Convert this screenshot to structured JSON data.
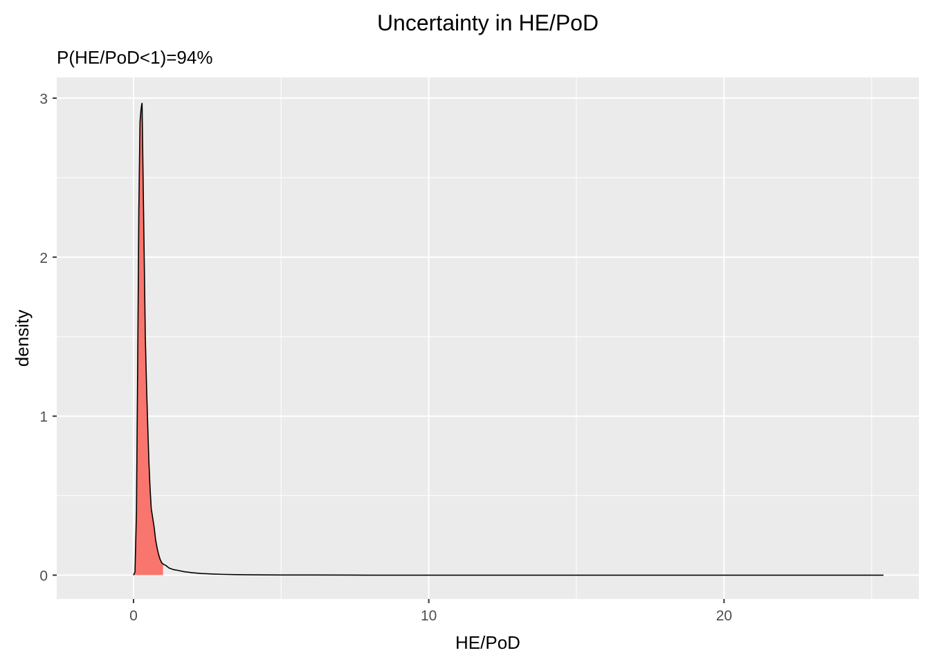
{
  "chart_data": {
    "type": "area",
    "title": "Uncertainty in HE/PoD",
    "subtitle": "P(HE/PoD<1)=94%",
    "xlabel": "HE/PoD",
    "ylabel": "density",
    "xlim": [
      -2.6,
      26.6
    ],
    "ylim": [
      -0.15,
      3.13
    ],
    "x_ticks": [
      0,
      10,
      20
    ],
    "x_tick_labels": [
      "0",
      "10",
      "20"
    ],
    "y_ticks": [
      0,
      1,
      2,
      3
    ],
    "y_tick_labels": [
      "0",
      "1",
      "2",
      "3"
    ],
    "grid": true,
    "panel_background": "#ebebeb",
    "grid_color": "#ffffff",
    "fill_color": "#f8766d",
    "line_color": "#000000",
    "shaded_region": {
      "from": 0.0,
      "to": 1.0
    },
    "series": [
      {
        "x": [
          0.0,
          0.05,
          0.1,
          0.14,
          0.18,
          0.22,
          0.25,
          0.27,
          0.29,
          0.31,
          0.34,
          0.37,
          0.4,
          0.44,
          0.48,
          0.52,
          0.56,
          0.6,
          0.65,
          0.7,
          0.75,
          0.8,
          0.85,
          0.9,
          0.95,
          1.0,
          1.1,
          1.2,
          1.35,
          1.5,
          1.7,
          2.0,
          2.3,
          2.7,
          3.0,
          3.5,
          4.0,
          5.0,
          6.0,
          8.0,
          10.0,
          15.0,
          20.0,
          25.4
        ],
        "y": [
          0.0,
          0.02,
          0.4,
          1.3,
          2.3,
          2.85,
          2.92,
          2.95,
          2.97,
          2.7,
          2.3,
          1.9,
          1.5,
          1.2,
          0.95,
          0.72,
          0.55,
          0.42,
          0.36,
          0.3,
          0.22,
          0.17,
          0.13,
          0.1,
          0.08,
          0.07,
          0.06,
          0.045,
          0.035,
          0.03,
          0.022,
          0.015,
          0.01,
          0.007,
          0.005,
          0.003,
          0.002,
          0.001,
          0.001,
          0.0,
          0.0,
          0.0,
          0.0,
          0.0
        ]
      }
    ]
  }
}
